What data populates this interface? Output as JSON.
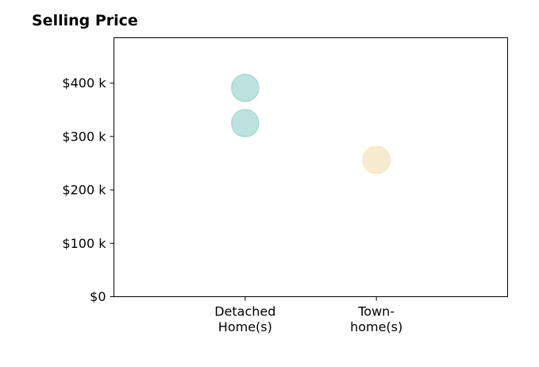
{
  "chart_data": {
    "type": "scatter",
    "title": "Selling Price",
    "xlabel": "",
    "ylabel": "",
    "categories": [
      {
        "lines": [
          "Detached",
          "Home(s)"
        ]
      },
      {
        "lines": [
          "Town-",
          "home(s)"
        ]
      }
    ],
    "xlim": [
      0,
      3
    ],
    "ylim": [
      0,
      485000
    ],
    "yticks": [
      {
        "value": 0,
        "label": "$0"
      },
      {
        "value": 100000,
        "label": "$100 k"
      },
      {
        "value": 200000,
        "label": "$200 k"
      },
      {
        "value": 300000,
        "label": "$300 k"
      },
      {
        "value": 400000,
        "label": "$400 k"
      }
    ],
    "grid": false,
    "points": [
      {
        "category": 0,
        "y": 391000,
        "color": "#a8d8d3"
      },
      {
        "category": 0,
        "y": 325000,
        "color": "#a8d8d3"
      },
      {
        "category": 1,
        "y": 256000,
        "color": "#f5e6c0"
      }
    ],
    "colors": {
      "detached": "#a8d8d3",
      "townhome": "#f5e6c0"
    }
  }
}
